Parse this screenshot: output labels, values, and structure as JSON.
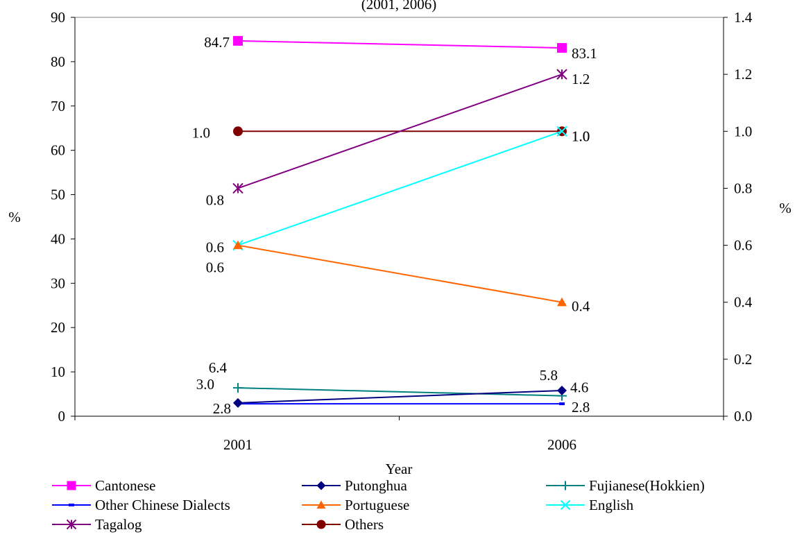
{
  "chart_data": {
    "type": "line",
    "title": "(2001, 2006)",
    "xlabel": "Year",
    "ylabel_left": "%",
    "ylabel_right": "%",
    "categories": [
      "2001",
      "2006"
    ],
    "ylim_left": [
      0,
      90
    ],
    "yticks_left": [
      "0",
      "10",
      "20",
      "30",
      "40",
      "50",
      "60",
      "70",
      "80",
      "90"
    ],
    "ylim_right": [
      0.0,
      1.4
    ],
    "yticks_right": [
      "0.0",
      "0.2",
      "0.4",
      "0.6",
      "0.8",
      "1.0",
      "1.2",
      "1.4"
    ],
    "grid": false,
    "legend_position": "bottom",
    "series": [
      {
        "name": "Cantonese",
        "axis": "left",
        "color": "#ff00ff",
        "marker": "square",
        "values": [
          84.7,
          83.1
        ],
        "labels": [
          "84.7",
          "83.1"
        ]
      },
      {
        "name": "Putonghua",
        "axis": "left",
        "color": "#000080",
        "marker": "diamond",
        "values": [
          3.0,
          5.8
        ],
        "labels": [
          "3.0",
          "5.8"
        ]
      },
      {
        "name": "Fujianese(Hokkien)",
        "axis": "left",
        "color": "#008080",
        "marker": "plus",
        "values": [
          6.4,
          4.6
        ],
        "labels": [
          "6.4",
          "4.6"
        ]
      },
      {
        "name": "Other Chinese Dialects",
        "axis": "left",
        "color": "#0000ff",
        "marker": "dash",
        "values": [
          2.8,
          2.8
        ],
        "labels": [
          "2.8",
          "2.8"
        ]
      },
      {
        "name": "Portuguese",
        "axis": "right",
        "color": "#ff6600",
        "marker": "triangle",
        "values": [
          0.6,
          0.4
        ],
        "labels": [
          "0.6",
          "0.4"
        ]
      },
      {
        "name": "English",
        "axis": "right",
        "color": "#00ffff",
        "marker": "x",
        "values": [
          0.6,
          1.0
        ],
        "labels": [
          "0.6",
          "1.0"
        ]
      },
      {
        "name": "Tagalog",
        "axis": "right",
        "color": "#800080",
        "marker": "star",
        "values": [
          0.8,
          1.2
        ],
        "labels": [
          "0.8",
          "1.2"
        ]
      },
      {
        "name": "Others",
        "axis": "right",
        "color": "#800000",
        "marker": "circle",
        "values": [
          1.0,
          1.0
        ],
        "labels": [
          "1.0",
          "1.0"
        ]
      }
    ]
  }
}
